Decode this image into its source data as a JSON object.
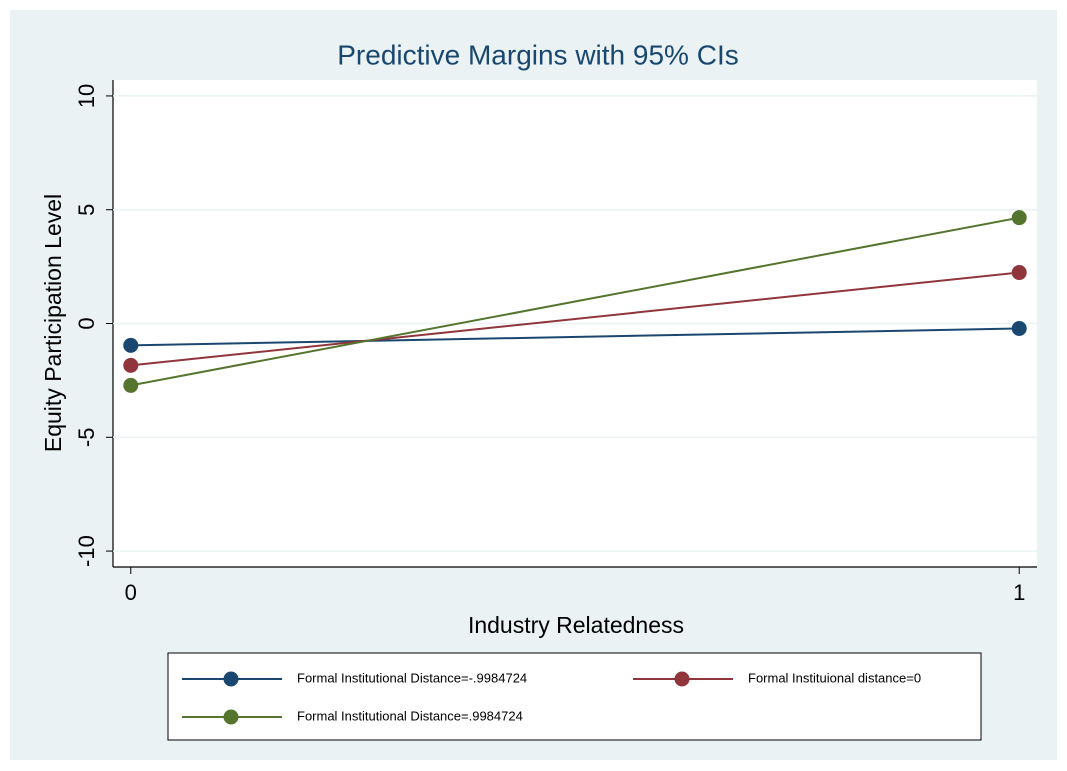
{
  "chart_data": {
    "type": "line",
    "title": "Predictive Margins with 95% CIs",
    "xlabel": "Industry Relatedness",
    "ylabel": "Equity Participation Level",
    "x": [
      0,
      1
    ],
    "xlim": [
      -0.02,
      1.02
    ],
    "xticks": [
      0,
      1
    ],
    "ylim": [
      -10.7,
      10.7
    ],
    "yticks": [
      -10,
      -5,
      0,
      5,
      10
    ],
    "grid": true,
    "series": [
      {
        "name": "Formal Institutional Distance=-.9984724",
        "color": "#1a476f",
        "values": [
          -0.96,
          -0.22
        ]
      },
      {
        "name": "Formal Instituional distance=0",
        "color": "#90353b",
        "values": [
          -1.84,
          2.24
        ]
      },
      {
        "name": "Formal Institutional Distance=.9984724",
        "color": "#55752f",
        "values": [
          -2.72,
          4.65
        ]
      }
    ]
  }
}
